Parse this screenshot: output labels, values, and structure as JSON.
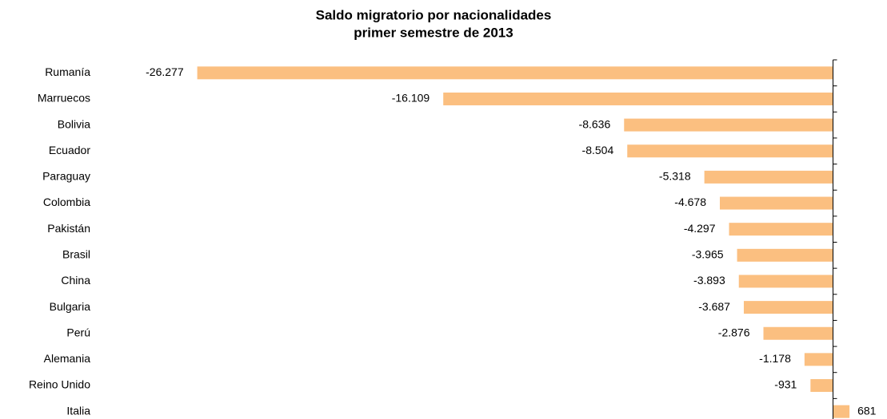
{
  "chart_data": {
    "type": "barh",
    "title": [
      "Saldo migratorio por nacionalidades",
      "primer semestre de 2013"
    ],
    "categories": [
      "Rumanía",
      "Marruecos",
      "Bolivia",
      "Ecuador",
      "Paraguay",
      "Colombia",
      "Pakistán",
      "Brasil",
      "China",
      "Bulgaria",
      "Perú",
      "Alemania",
      "Reino Unido",
      "Italia"
    ],
    "values": [
      -26277,
      -16109,
      -8636,
      -8504,
      -5318,
      -4678,
      -4297,
      -3965,
      -3893,
      -3687,
      -2876,
      -1178,
      -931,
      681
    ],
    "value_labels": [
      "-26.277",
      "-16.109",
      "-8.636",
      "-8.504",
      "-5.318",
      "-4.678",
      "-4.297",
      "-3.965",
      "-3.893",
      "-3.687",
      "-2.876",
      "-1.178",
      "-931",
      "681"
    ],
    "color": "#fbbf80",
    "xlim": [
      -30000,
      2000
    ]
  }
}
